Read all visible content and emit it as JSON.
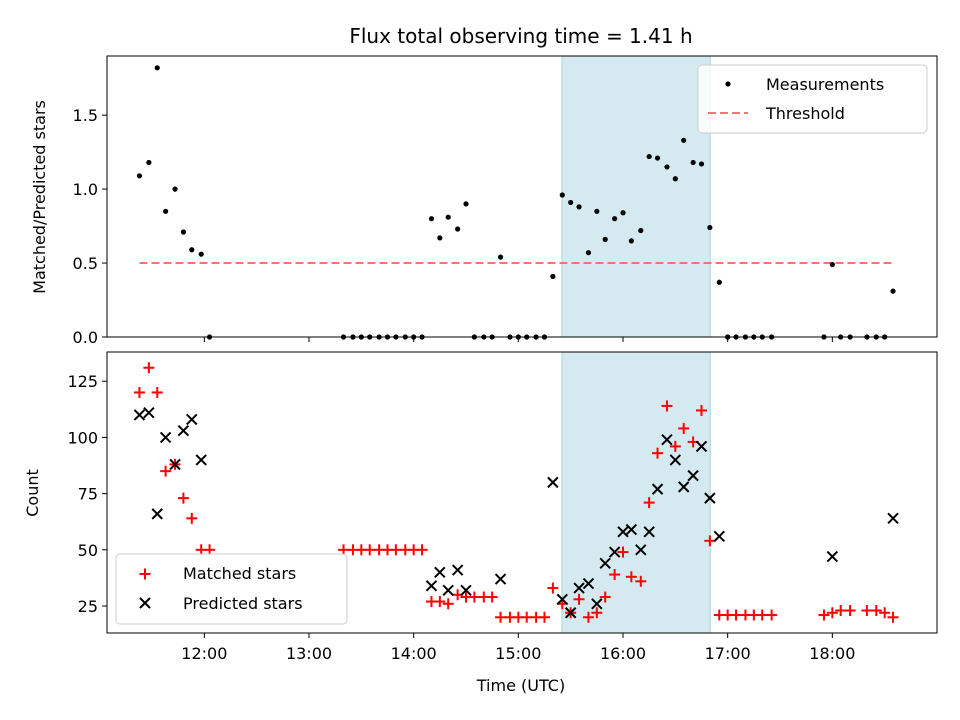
{
  "title": "Flux total observing time = 1.41 h",
  "colors": {
    "measurement": "#000000",
    "threshold": "#ff7070",
    "matched": "#ff0000",
    "predicted": "#000000",
    "highlight": "#d4eaf0",
    "highlight_edge": "#a9d3dd"
  },
  "chart_data": [
    {
      "type": "scatter",
      "ylabel": "Matched/Predicted stars",
      "xlim": [
        11.07,
        19.0
      ],
      "ylim": [
        0,
        1.9
      ],
      "yticks": [
        0.0,
        0.5,
        1.0,
        1.5
      ],
      "ytick_labels": [
        "0.0",
        "0.5",
        "1.0",
        "1.5"
      ],
      "xticks": [
        12,
        13,
        14,
        15,
        16,
        17,
        18
      ],
      "highlight_span": [
        15.4167,
        16.8333
      ],
      "legend": {
        "position": "top-right",
        "entries": [
          "Measurements",
          "Threshold"
        ]
      },
      "threshold": {
        "name": "Threshold",
        "y": 0.5,
        "x_range": [
          11.38,
          18.58
        ]
      },
      "series": [
        {
          "name": "Measurements",
          "x": [
            11.38,
            11.47,
            11.55,
            11.63,
            11.72,
            11.8,
            11.88,
            11.97,
            12.05,
            13.33,
            13.42,
            13.5,
            13.58,
            13.67,
            13.75,
            13.83,
            13.92,
            14.0,
            14.08,
            14.17,
            14.25,
            14.33,
            14.42,
            14.5,
            14.58,
            14.67,
            14.75,
            14.83,
            14.92,
            15.0,
            15.08,
            15.17,
            15.25,
            15.33,
            15.42,
            15.5,
            15.58,
            15.67,
            15.75,
            15.83,
            15.92,
            16.0,
            16.08,
            16.17,
            16.25,
            16.33,
            16.42,
            16.5,
            16.58,
            16.67,
            16.75,
            16.83,
            16.92,
            17.0,
            17.08,
            17.17,
            17.25,
            17.33,
            17.42,
            17.92,
            18.0,
            18.08,
            18.17,
            18.33,
            18.42,
            18.5,
            18.58
          ],
          "y": [
            1.09,
            1.18,
            1.82,
            0.85,
            1.0,
            0.71,
            0.59,
            0.56,
            0.0,
            0.0,
            0.0,
            0.0,
            0.0,
            0.0,
            0.0,
            0.0,
            0.0,
            0.0,
            0.0,
            0.8,
            0.67,
            0.81,
            0.73,
            0.9,
            0.0,
            0.0,
            0.0,
            0.54,
            0.0,
            0.0,
            0.0,
            0.0,
            0.0,
            0.41,
            0.96,
            0.91,
            0.88,
            0.57,
            0.85,
            0.66,
            0.8,
            0.84,
            0.65,
            0.72,
            1.22,
            1.21,
            1.15,
            1.07,
            1.33,
            1.18,
            1.17,
            0.74,
            0.37,
            0.0,
            0.0,
            0.0,
            0.0,
            0.0,
            0.0,
            0.0,
            0.49,
            0.0,
            0.0,
            0.0,
            0.0,
            0.0,
            0.31
          ]
        }
      ]
    },
    {
      "type": "scatter",
      "ylabel": "Count",
      "xlabel": "Time (UTC)",
      "xlim": [
        11.07,
        19.0
      ],
      "ylim": [
        13,
        138
      ],
      "yticks": [
        25,
        50,
        75,
        100,
        125
      ],
      "ytick_labels": [
        "25",
        "50",
        "75",
        "100",
        "125"
      ],
      "xticks": [
        12,
        13,
        14,
        15,
        16,
        17,
        18
      ],
      "xtick_labels": [
        "12:00",
        "13:00",
        "14:00",
        "15:00",
        "16:00",
        "17:00",
        "18:00"
      ],
      "highlight_span": [
        15.4167,
        16.8333
      ],
      "legend": {
        "position": "lower-left",
        "entries": [
          "Matched stars",
          "Predicted stars"
        ]
      },
      "series": [
        {
          "name": "Matched stars",
          "marker": "plus",
          "x": [
            11.38,
            11.47,
            11.55,
            11.63,
            11.72,
            11.8,
            11.88,
            11.97,
            12.05,
            13.33,
            13.42,
            13.5,
            13.58,
            13.67,
            13.75,
            13.83,
            13.92,
            14.0,
            14.08,
            14.17,
            14.25,
            14.33,
            14.42,
            14.5,
            14.58,
            14.67,
            14.75,
            14.83,
            14.92,
            15.0,
            15.08,
            15.17,
            15.25,
            15.33,
            15.42,
            15.5,
            15.58,
            15.67,
            15.75,
            15.83,
            15.92,
            16.0,
            16.08,
            16.17,
            16.25,
            16.33,
            16.42,
            16.5,
            16.58,
            16.67,
            16.75,
            16.83,
            16.92,
            17.0,
            17.08,
            17.17,
            17.25,
            17.33,
            17.42,
            17.92,
            18.0,
            18.08,
            18.17,
            18.33,
            18.42,
            18.5,
            18.58
          ],
          "y": [
            120,
            131,
            120,
            85,
            88,
            73,
            64,
            50,
            50,
            50,
            50,
            50,
            50,
            50,
            50,
            50,
            50,
            50,
            50,
            27,
            27,
            26,
            30,
            29,
            29,
            29,
            29,
            20,
            20,
            20,
            20,
            20,
            20,
            33,
            26,
            22,
            28,
            20,
            22,
            29,
            39,
            49,
            38,
            36,
            71,
            93,
            114,
            96,
            104,
            98,
            112,
            54,
            21,
            21,
            21,
            21,
            21,
            21,
            21,
            21,
            22,
            23,
            23,
            23,
            23,
            22,
            20
          ]
        },
        {
          "name": "Predicted stars",
          "marker": "x",
          "x": [
            11.38,
            11.47,
            11.55,
            11.63,
            11.72,
            11.8,
            11.88,
            11.97,
            14.17,
            14.25,
            14.33,
            14.42,
            14.5,
            14.83,
            15.33,
            15.42,
            15.5,
            15.58,
            15.67,
            15.75,
            15.83,
            15.92,
            16.0,
            16.08,
            16.17,
            16.25,
            16.33,
            16.42,
            16.5,
            16.58,
            16.67,
            16.75,
            16.83,
            16.92,
            18.0,
            18.58
          ],
          "y": [
            110,
            111,
            66,
            100,
            88,
            103,
            108,
            90,
            34,
            40,
            32,
            41,
            32,
            37,
            80,
            28,
            22,
            33,
            35,
            26,
            44,
            49,
            58,
            59,
            50,
            58,
            77,
            99,
            90,
            78,
            83,
            96,
            73,
            56,
            47,
            64
          ]
        }
      ]
    }
  ]
}
